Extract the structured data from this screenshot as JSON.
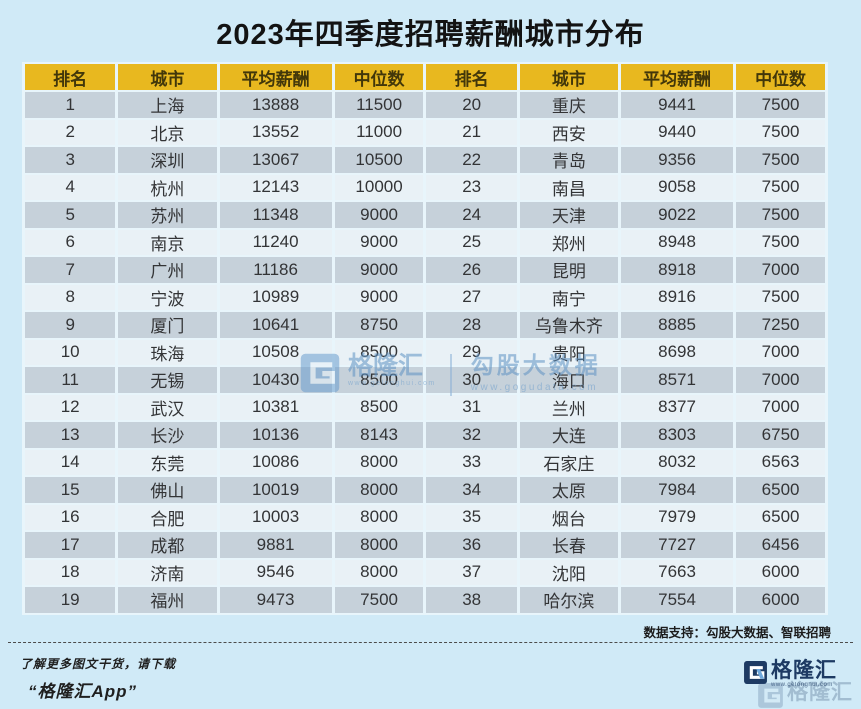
{
  "title": "2023年四季度招聘薪酬城市分布",
  "colors": {
    "background": "#d0eaf7",
    "header_bg": "#e8b81f",
    "row_dark": "#c6d1da",
    "row_light": "#e9f1f6",
    "logo_navy": "#1d3a63",
    "logo_accent_blue": "#6fa8dc",
    "watermark_blue": "#5f93c4",
    "title_color": "#131313"
  },
  "watermark": {
    "brand": "格隆汇",
    "brand_url": "www.gelonghui.com",
    "data_brand": "勾股大数据",
    "data_url": "www.gogudata.com"
  },
  "footer": {
    "support_note": "数据支持：勾股大数据、智联招聘",
    "promo_line1": "了解更多图文干货，请下载",
    "promo_line2": "“格隆汇App”",
    "logo_text": "格隆汇",
    "logo_url": "www.gelonghui.com"
  },
  "chart_data": {
    "type": "table",
    "title": "2023年四季度招聘薪酬城市分布",
    "columns": [
      "排名",
      "城市",
      "平均薪酬",
      "中位数"
    ],
    "layout": "two column-groups side by side, ranks 1-19 left and 20-38 right",
    "rows": [
      [
        1,
        "上海",
        13888,
        11500
      ],
      [
        2,
        "北京",
        13552,
        11000
      ],
      [
        3,
        "深圳",
        13067,
        10500
      ],
      [
        4,
        "杭州",
        12143,
        10000
      ],
      [
        5,
        "苏州",
        11348,
        9000
      ],
      [
        6,
        "南京",
        11240,
        9000
      ],
      [
        7,
        "广州",
        11186,
        9000
      ],
      [
        8,
        "宁波",
        10989,
        9000
      ],
      [
        9,
        "厦门",
        10641,
        8750
      ],
      [
        10,
        "珠海",
        10508,
        8500
      ],
      [
        11,
        "无锡",
        10430,
        8500
      ],
      [
        12,
        "武汉",
        10381,
        8500
      ],
      [
        13,
        "长沙",
        10136,
        8143
      ],
      [
        14,
        "东莞",
        10086,
        8000
      ],
      [
        15,
        "佛山",
        10019,
        8000
      ],
      [
        16,
        "合肥",
        10003,
        8000
      ],
      [
        17,
        "成都",
        9881,
        8000
      ],
      [
        18,
        "济南",
        9546,
        8000
      ],
      [
        19,
        "福州",
        9473,
        7500
      ],
      [
        20,
        "重庆",
        9441,
        7500
      ],
      [
        21,
        "西安",
        9440,
        7500
      ],
      [
        22,
        "青岛",
        9356,
        7500
      ],
      [
        23,
        "南昌",
        9058,
        7500
      ],
      [
        24,
        "天津",
        9022,
        7500
      ],
      [
        25,
        "郑州",
        8948,
        7500
      ],
      [
        26,
        "昆明",
        8918,
        7000
      ],
      [
        27,
        "南宁",
        8916,
        7500
      ],
      [
        28,
        "乌鲁木齐",
        8885,
        7250
      ],
      [
        29,
        "贵阳",
        8698,
        7000
      ],
      [
        30,
        "海口",
        8571,
        7000
      ],
      [
        31,
        "兰州",
        8377,
        7000
      ],
      [
        32,
        "大连",
        8303,
        6750
      ],
      [
        33,
        "石家庄",
        8032,
        6563
      ],
      [
        34,
        "太原",
        7984,
        6500
      ],
      [
        35,
        "烟台",
        7979,
        6500
      ],
      [
        36,
        "长春",
        7727,
        6456
      ],
      [
        37,
        "沈阳",
        7663,
        6000
      ],
      [
        38,
        "哈尔滨",
        7554,
        6000
      ]
    ]
  }
}
